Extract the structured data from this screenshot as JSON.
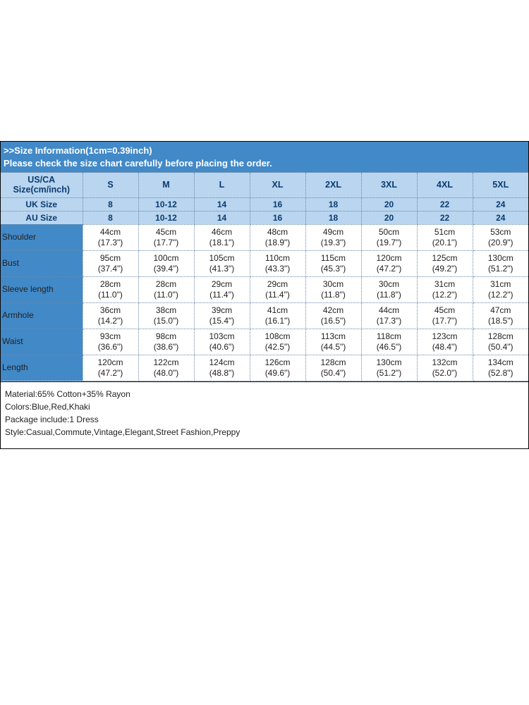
{
  "banner": {
    "line1": ">>Size Information(1cm=0.39inch)",
    "line2": "Please check the size chart carefully before placing the order."
  },
  "columns": {
    "header_label_line1": "US/CA",
    "header_label_line2": "Size(cm/inch)",
    "sizes": [
      "S",
      "M",
      "L",
      "XL",
      "2XL",
      "3XL",
      "4XL",
      "5XL"
    ]
  },
  "uk_row": {
    "label": "UK Size",
    "values": [
      "8",
      "10-12",
      "14",
      "16",
      "18",
      "20",
      "22",
      "24"
    ]
  },
  "au_row": {
    "label": "AU Size",
    "values": [
      "8",
      "10-12",
      "14",
      "16",
      "18",
      "20",
      "22",
      "24"
    ]
  },
  "measurements": [
    {
      "label": "Shoulder",
      "cells": [
        {
          "cm": "44cm",
          "in": "(17.3\")"
        },
        {
          "cm": "45cm",
          "in": "(17.7\")"
        },
        {
          "cm": "46cm",
          "in": "(18.1\")"
        },
        {
          "cm": "48cm",
          "in": "(18.9\")"
        },
        {
          "cm": "49cm",
          "in": "(19.3\")"
        },
        {
          "cm": "50cm",
          "in": "(19.7\")"
        },
        {
          "cm": "51cm",
          "in": "(20.1\")"
        },
        {
          "cm": "53cm",
          "in": "(20.9\")"
        }
      ]
    },
    {
      "label": "Bust",
      "cells": [
        {
          "cm": "95cm",
          "in": "(37.4\")"
        },
        {
          "cm": "100cm",
          "in": "(39.4\")"
        },
        {
          "cm": "105cm",
          "in": "(41.3\")"
        },
        {
          "cm": "110cm",
          "in": "(43.3\")"
        },
        {
          "cm": "115cm",
          "in": "(45.3\")"
        },
        {
          "cm": "120cm",
          "in": "(47.2\")"
        },
        {
          "cm": "125cm",
          "in": "(49.2\")"
        },
        {
          "cm": "130cm",
          "in": "(51.2\")"
        }
      ]
    },
    {
      "label": "Sleeve length",
      "cells": [
        {
          "cm": "28cm",
          "in": "(11.0\")"
        },
        {
          "cm": "28cm",
          "in": "(11.0\")"
        },
        {
          "cm": "29cm",
          "in": "(11.4\")"
        },
        {
          "cm": "29cm",
          "in": "(11.4\")"
        },
        {
          "cm": "30cm",
          "in": "(11.8\")"
        },
        {
          "cm": "30cm",
          "in": "(11.8\")"
        },
        {
          "cm": "31cm",
          "in": "(12.2\")"
        },
        {
          "cm": "31cm",
          "in": "(12.2\")"
        }
      ]
    },
    {
      "label": "Armhole",
      "cells": [
        {
          "cm": "36cm",
          "in": "(14.2\")"
        },
        {
          "cm": "38cm",
          "in": "(15.0\")"
        },
        {
          "cm": "39cm",
          "in": "(15.4\")"
        },
        {
          "cm": "41cm",
          "in": "(16.1\")"
        },
        {
          "cm": "42cm",
          "in": "(16.5\")"
        },
        {
          "cm": "44cm",
          "in": "(17.3\")"
        },
        {
          "cm": "45cm",
          "in": "(17.7\")"
        },
        {
          "cm": "47cm",
          "in": "(18.5\")"
        }
      ]
    },
    {
      "label": "Waist",
      "cells": [
        {
          "cm": "93cm",
          "in": "(36.6\")"
        },
        {
          "cm": "98cm",
          "in": "(38.6\")"
        },
        {
          "cm": "103cm",
          "in": "(40.6\")"
        },
        {
          "cm": "108cm",
          "in": "(42.5\")"
        },
        {
          "cm": "113cm",
          "in": "(44.5\")"
        },
        {
          "cm": "118cm",
          "in": "(46.5\")"
        },
        {
          "cm": "123cm",
          "in": "(48.4\")"
        },
        {
          "cm": "128cm",
          "in": "(50.4\")"
        }
      ]
    },
    {
      "label": "Length",
      "cells": [
        {
          "cm": "120cm",
          "in": "(47.2\")"
        },
        {
          "cm": "122cm",
          "in": "(48.0\")"
        },
        {
          "cm": "124cm",
          "in": "(48.8\")"
        },
        {
          "cm": "126cm",
          "in": "(49.6\")"
        },
        {
          "cm": "128cm",
          "in": "(50.4\")"
        },
        {
          "cm": "130cm",
          "in": "(51.2\")"
        },
        {
          "cm": "132cm",
          "in": "(52.0\")"
        },
        {
          "cm": "134cm",
          "in": "(52.8\")"
        }
      ]
    }
  ],
  "info": {
    "material": "Material:65% Cotton+35% Rayon",
    "colors": "Colors:Blue,Red,Khaki",
    "package": "Package include:1 Dress",
    "style": "Style:Casual,Commute,Vintage,Elegant,Street Fashion,Preppy"
  },
  "styling": {
    "banner_bg": "#4289c8",
    "header_bg": "#b9d5ef",
    "label_bg": "#4289c8",
    "border_color": "#6b8aa6",
    "outer_border": "#060606",
    "text_dark": "#07315a",
    "type": "table"
  }
}
